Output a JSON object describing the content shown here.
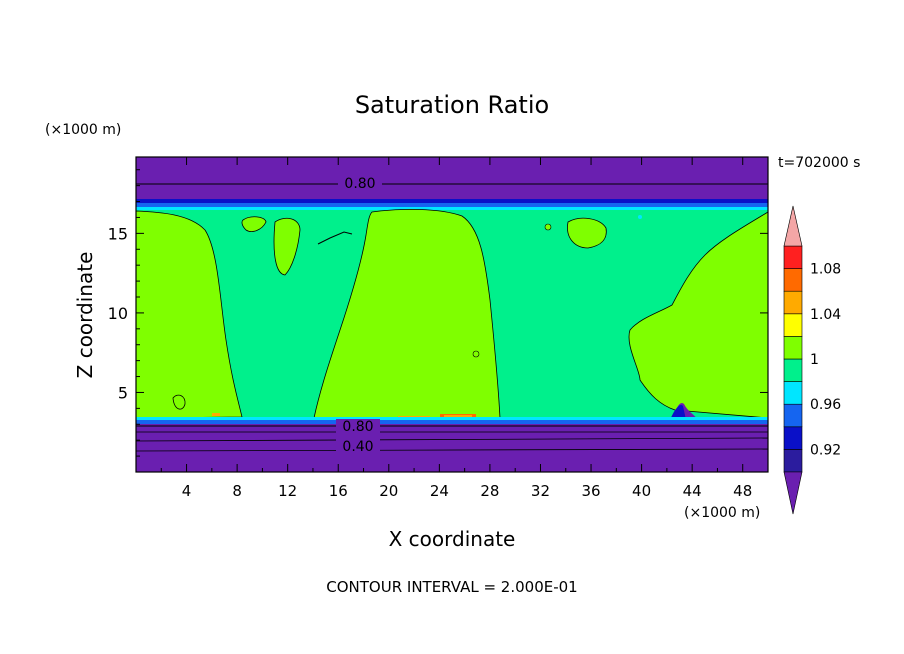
{
  "chart_data": {
    "type": "heatmap",
    "title": "Saturation Ratio",
    "xlabel": "X coordinate",
    "ylabel": "Z coordinate",
    "x_unit": "(×1000 m)",
    "y_unit": "(×1000 m)",
    "time_label": "t=702000 s",
    "footer": "CONTOUR INTERVAL = 2.000E-01",
    "xlim": [
      0,
      50
    ],
    "ylim": [
      0,
      19.8
    ],
    "x_ticks": [
      "4",
      "8",
      "12",
      "16",
      "20",
      "24",
      "28",
      "32",
      "36",
      "40",
      "44",
      "48"
    ],
    "y_ticks": [
      "5",
      "10",
      "15"
    ],
    "contour_labels": [
      "0.80",
      "0.80",
      "0.40"
    ],
    "colorbar": {
      "tick_labels": [
        "0.92",
        "0.96",
        "1",
        "1.04",
        "1.08"
      ],
      "levels": [
        0.9,
        0.92,
        0.94,
        0.96,
        0.98,
        1.0,
        1.02,
        1.04,
        1.06,
        1.08,
        1.1
      ],
      "colors": [
        "#6a1fb0",
        "#2b1c9e",
        "#0a10c8",
        "#1565f0",
        "#00e6ff",
        "#00f08c",
        "#7fff00",
        "#ffff00",
        "#ffaa00",
        "#ff6a00",
        "#ff2020",
        "#f4a6a6"
      ]
    },
    "regions": [
      {
        "name": "stratosphere-dry",
        "value_range": "< 0.90",
        "z": [
          17.0,
          19.8
        ]
      },
      {
        "name": "upper-moist-layer",
        "value_range": "0.98-1.00",
        "z": [
          3.4,
          16.8
        ]
      },
      {
        "name": "supersaturated-columns",
        "value_range": "1.00-1.02",
        "x_centers": [
          5,
          25,
          45
        ]
      },
      {
        "name": "lower-dry-layer",
        "value_range": "< 0.90",
        "z": [
          0,
          3.2
        ]
      }
    ]
  }
}
